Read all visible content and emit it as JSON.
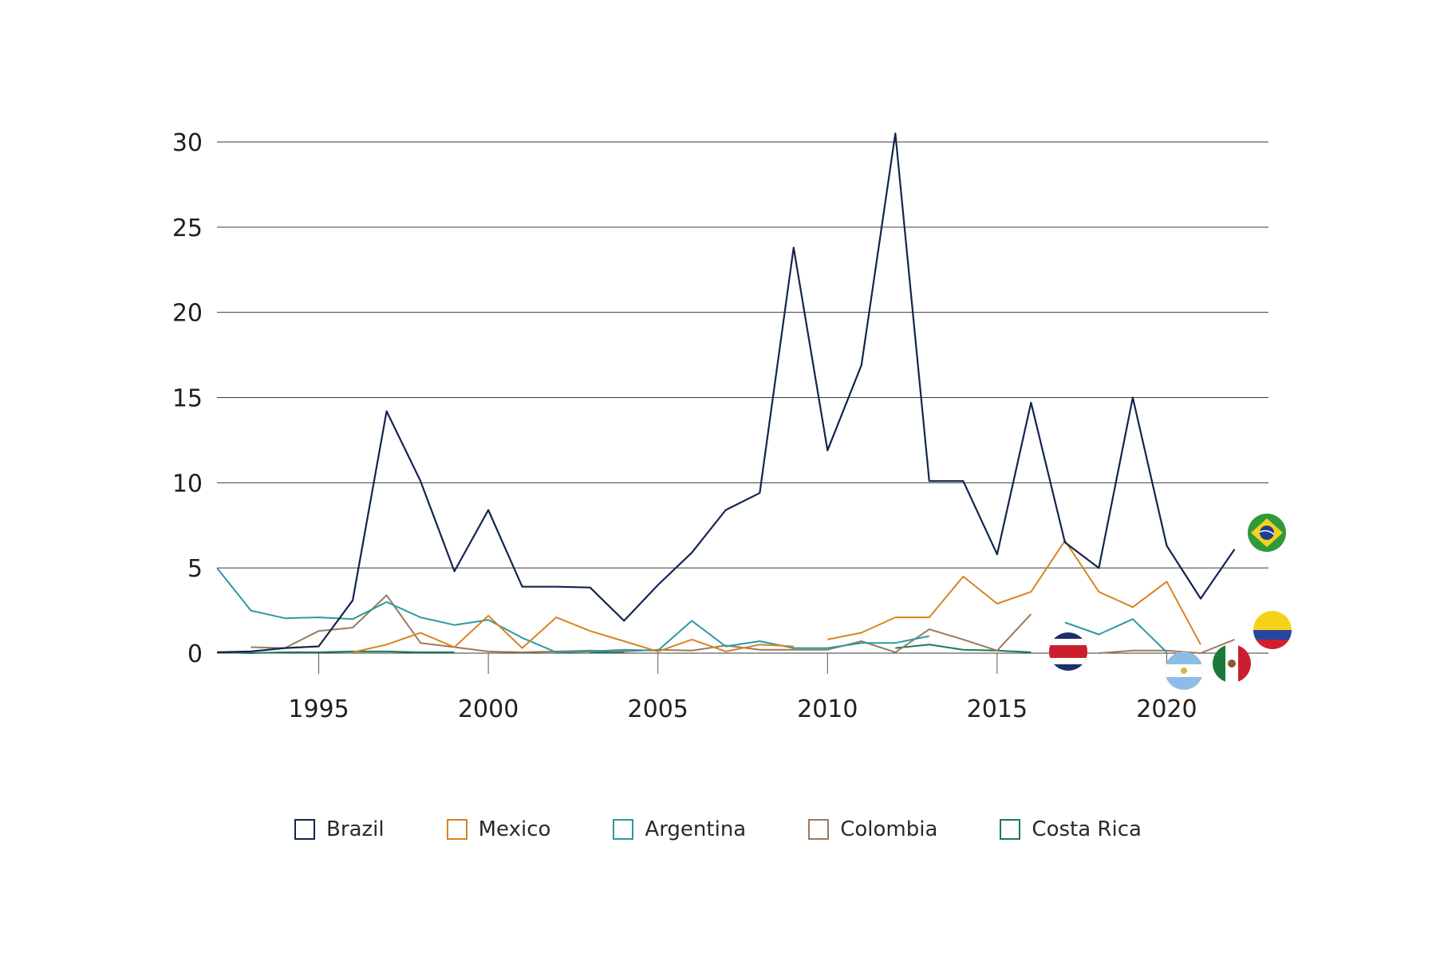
{
  "chart_data": {
    "type": "line",
    "title": "",
    "xlabel": "",
    "ylabel": "",
    "xlim": [
      1992,
      2023
    ],
    "ylim": [
      0,
      30
    ],
    "yticks": [
      "0",
      "5",
      "10",
      "15",
      "20",
      "25",
      "30"
    ],
    "xticks": [
      "1995",
      "2000",
      "2005",
      "2010",
      "2015",
      "2020"
    ],
    "grid": "horizontal",
    "legend_position": "bottom",
    "series": [
      {
        "name": "Brazil",
        "color": "#13244f",
        "flag": "brazil-flag",
        "x": [
          1992,
          1993,
          1994,
          1995,
          1996,
          1997,
          1998,
          1999,
          2000,
          2001,
          2002,
          2003,
          2004,
          2005,
          2006,
          2007,
          2008,
          2009,
          2010,
          2011,
          2012,
          2013,
          2014,
          2015,
          2016,
          2017,
          2018,
          2019,
          2020,
          2021,
          2022
        ],
        "values": [
          0.05,
          0.1,
          0.3,
          0.4,
          3.1,
          14.2,
          10.1,
          4.8,
          8.4,
          3.9,
          3.9,
          3.85,
          1.9,
          4.0,
          5.9,
          8.4,
          9.4,
          23.8,
          11.9,
          16.9,
          30.5,
          10.1,
          10.1,
          5.8,
          14.7,
          6.5,
          5.0,
          15.0,
          6.3,
          3.2,
          6.1
        ]
      },
      {
        "name": "Mexico",
        "color": "#d9831f",
        "flag": "mexico-flag",
        "x": [
          1996,
          1997,
          1998,
          1999,
          2000,
          2001,
          2002,
          2003,
          2004,
          2005,
          2006,
          2007,
          2008,
          2009,
          null,
          2010,
          2011,
          2012,
          2013,
          2014,
          2015,
          2016,
          2017,
          2018,
          2019,
          2020,
          2021
        ],
        "values": [
          0.05,
          0.5,
          1.2,
          0.35,
          2.2,
          0.3,
          2.1,
          1.3,
          0.7,
          0.1,
          0.8,
          0.1,
          0.5,
          0.4,
          null,
          0.8,
          1.2,
          2.1,
          2.1,
          4.5,
          2.9,
          3.6,
          6.6,
          3.6,
          2.7,
          4.2,
          0.5
        ]
      },
      {
        "name": "Argentina",
        "color": "#2a9aa3",
        "flag": "argentina-flag",
        "x": [
          1992,
          1993,
          1994,
          1995,
          1996,
          1997,
          1998,
          1999,
          2000,
          2001,
          2002,
          2003,
          2004,
          2005,
          2006,
          2007,
          2008,
          2009,
          2010,
          2011,
          2012,
          2013,
          null,
          2017,
          2018,
          2019,
          2020
        ],
        "values": [
          5.0,
          2.5,
          2.05,
          2.1,
          2.0,
          3.0,
          2.1,
          1.65,
          1.95,
          0.9,
          0.05,
          0.1,
          0.2,
          0.15,
          1.9,
          0.4,
          0.7,
          0.3,
          0.3,
          0.6,
          0.6,
          1.0,
          null,
          1.8,
          1.1,
          2.0,
          0.05
        ]
      },
      {
        "name": "Colombia",
        "color": "#9c7a5c",
        "flag": "colombia-flag",
        "x": [
          1993,
          1994,
          1995,
          1996,
          1997,
          1998,
          1999,
          2000,
          2001,
          2002,
          2003,
          2004,
          2005,
          2006,
          2007,
          2008,
          2009,
          2010,
          2011,
          2012,
          2013,
          2014,
          2015,
          2016,
          null,
          2018,
          2019,
          2020,
          2021,
          2022
        ],
        "values": [
          0.35,
          0.3,
          1.3,
          1.5,
          3.4,
          0.6,
          0.35,
          0.1,
          0.05,
          0.1,
          0.15,
          0.1,
          0.2,
          0.15,
          0.45,
          0.2,
          0.2,
          0.2,
          0.7,
          0.05,
          1.4,
          0.8,
          0.15,
          2.3,
          null,
          0.0,
          0.15,
          0.15,
          0.0,
          0.8
        ]
      },
      {
        "name": "Costa Rica",
        "color": "#1a7a5c",
        "flag": "costa-rica-flag",
        "x": [
          1992,
          1993,
          1994,
          1995,
          1996,
          1997,
          1998,
          1999,
          null,
          2003,
          2004,
          null,
          2012,
          2013,
          2014,
          2015,
          2016
        ],
        "values": [
          0.05,
          0.0,
          0.05,
          0.05,
          0.1,
          0.1,
          0.05,
          0.05,
          null,
          0.05,
          0.05,
          null,
          0.3,
          0.5,
          0.2,
          0.15,
          0.05
        ]
      }
    ]
  }
}
